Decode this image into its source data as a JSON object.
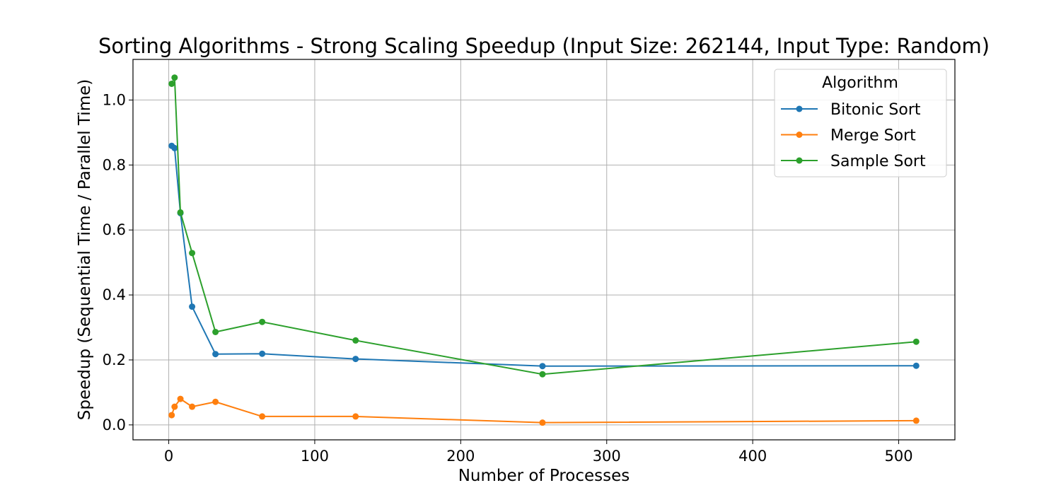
{
  "chart_data": {
    "type": "line",
    "title": "Sorting Algorithms - Strong Scaling Speedup (Input Size: 262144, Input Type: Random)",
    "xlabel": "Number of Processes",
    "ylabel": "Speedup (Sequential Time / Parallel Time)",
    "xlim": [
      -24.5,
      538.5
    ],
    "ylim": [
      -0.046,
      1.125
    ],
    "x_ticks": [
      0,
      100,
      200,
      300,
      400,
      500
    ],
    "y_ticks": [
      0.0,
      0.2,
      0.4,
      0.6,
      0.8,
      1.0
    ],
    "x_tick_labels": [
      "0",
      "100",
      "200",
      "300",
      "400",
      "500"
    ],
    "y_tick_labels": [
      "0.0",
      "0.2",
      "0.4",
      "0.6",
      "0.8",
      "1.0"
    ],
    "grid": true,
    "legend": {
      "title": "Algorithm",
      "placement": "top-right"
    },
    "x": [
      2,
      4,
      8,
      16,
      32,
      64,
      128,
      256,
      512
    ],
    "series": [
      {
        "name": "Bitonic Sort",
        "color": "#1f77b4",
        "values": [
          0.859,
          0.852,
          0.652,
          0.364,
          0.218,
          0.219,
          0.203,
          0.181,
          0.182
        ]
      },
      {
        "name": "Merge Sort",
        "color": "#ff7f0e",
        "values": [
          0.03,
          0.056,
          0.08,
          0.056,
          0.071,
          0.026,
          0.026,
          0.007,
          0.013
        ]
      },
      {
        "name": "Sample Sort",
        "color": "#2ca02c",
        "values": [
          1.05,
          1.069,
          0.654,
          0.529,
          0.286,
          0.317,
          0.26,
          0.156,
          0.256
        ]
      }
    ]
  }
}
